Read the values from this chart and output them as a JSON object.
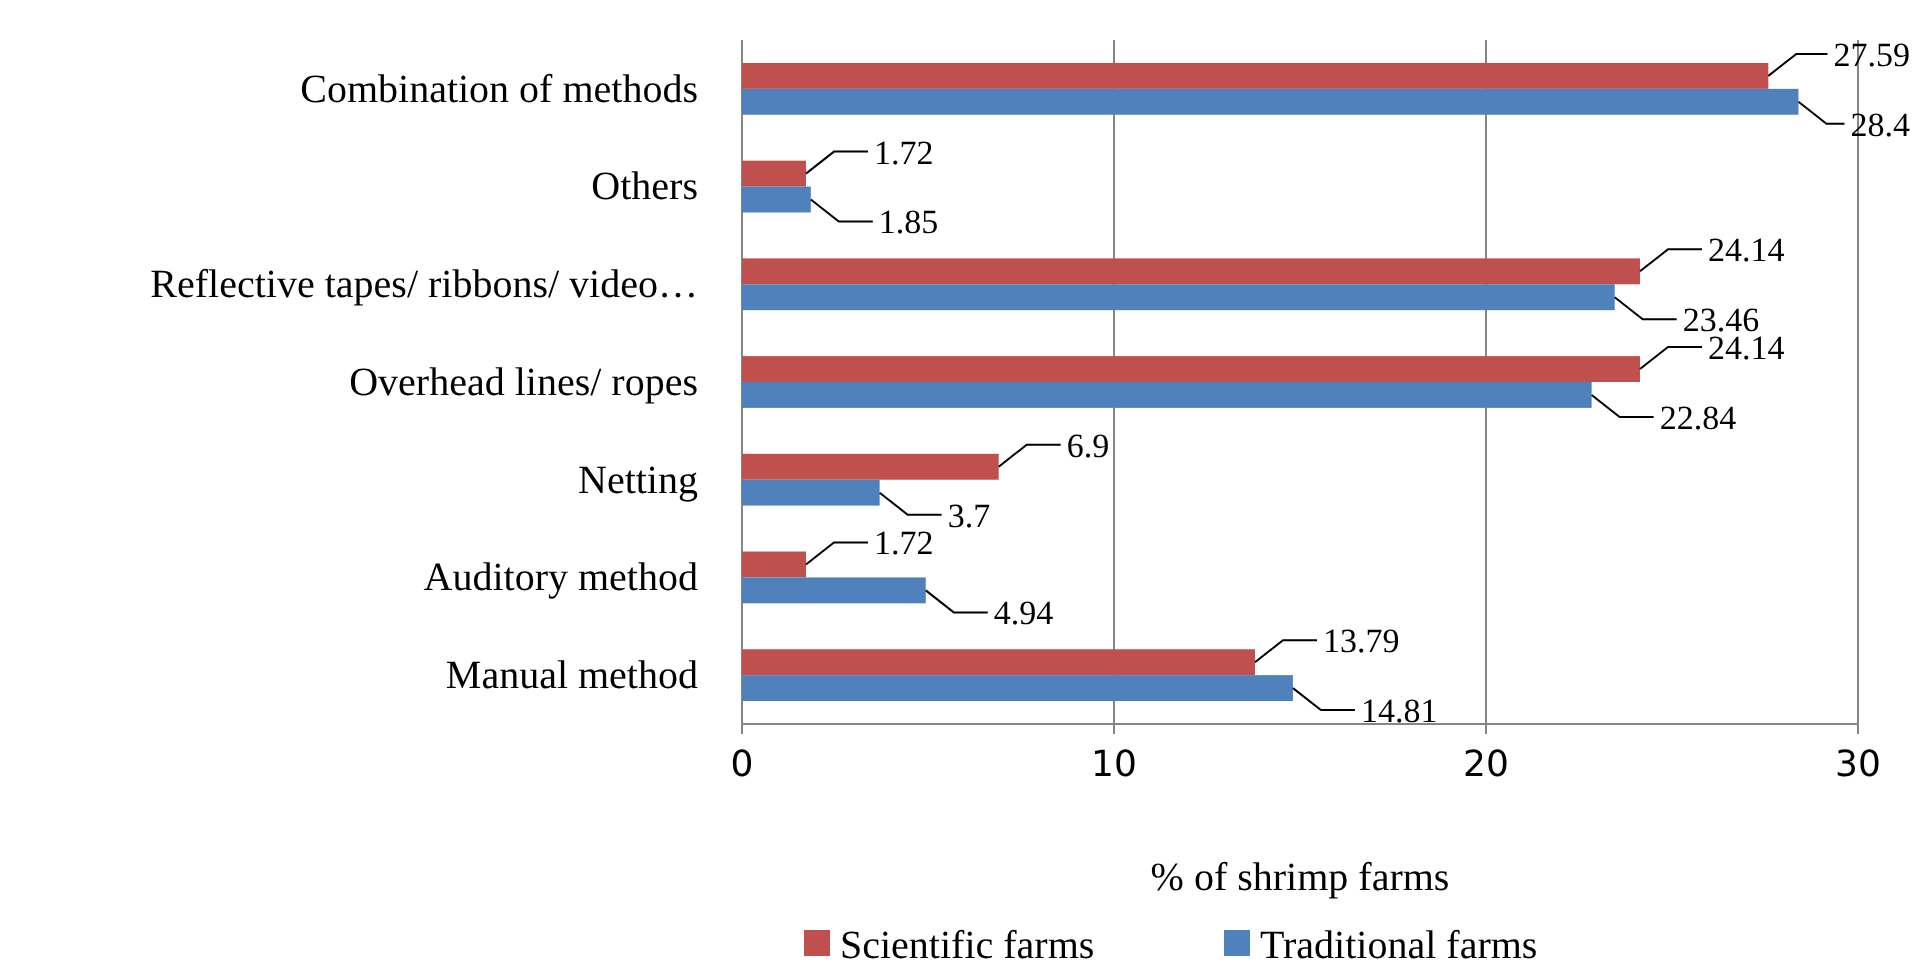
{
  "chart_data": {
    "type": "bar",
    "orientation": "horizontal",
    "xlabel": "% of shrimp farms",
    "categories": [
      "Combination of methods",
      "Others",
      "Reflective tapes/ ribbons/ video…",
      "Overhead lines/ ropes",
      "Netting",
      "Auditory method",
      "Manual method"
    ],
    "series": [
      {
        "name": "Scientific farms",
        "color": "#c0504d",
        "values": [
          27.59,
          1.72,
          24.14,
          24.14,
          6.9,
          1.72,
          13.79
        ]
      },
      {
        "name": "Traditional farms",
        "color": "#4f81bd",
        "values": [
          28.4,
          1.85,
          23.46,
          22.84,
          3.7,
          4.94,
          14.81
        ]
      }
    ],
    "xlim": [
      0,
      30
    ],
    "xticks": [
      0,
      10,
      20,
      30
    ],
    "grid": "x",
    "legend": "bottom",
    "data_labels": true
  }
}
